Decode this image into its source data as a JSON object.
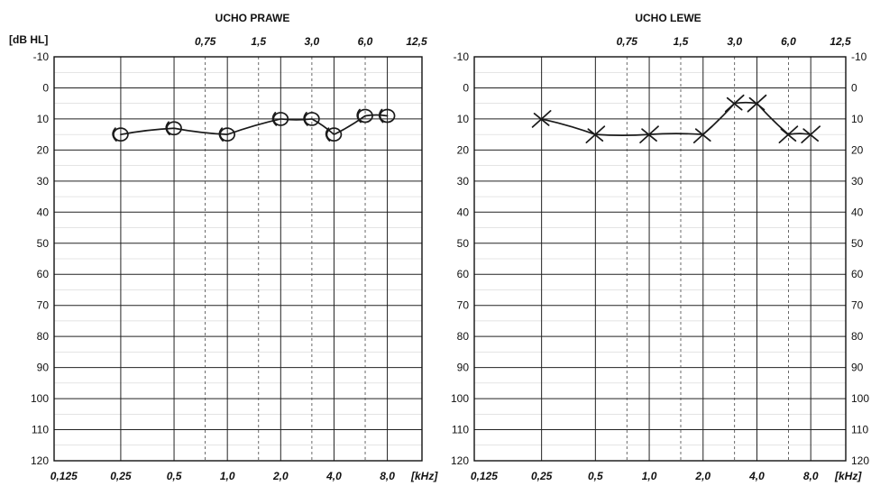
{
  "chart_data": [
    {
      "type": "line",
      "title": "UCHO PRAWE",
      "ylabel": "[dB HL]",
      "xlabel": "[kHz]",
      "ylim": [
        -10,
        120
      ],
      "y_inverted": true,
      "y_ticks": [
        "-10",
        "0",
        "10",
        "20",
        "30",
        "40",
        "50",
        "60",
        "70",
        "80",
        "90",
        "100",
        "110",
        "120"
      ],
      "x_ticks_bottom": [
        "0,125",
        "0,25",
        "0,5",
        "1,0",
        "2,0",
        "4,0",
        "8,0"
      ],
      "x_ticks_top": [
        "0,75",
        "1,5",
        "3,0",
        "6,0",
        "12,5"
      ],
      "grid": true,
      "marker": "circle",
      "series": [
        {
          "x": [
            0.25,
            0.5,
            1.0,
            2.0,
            3.0,
            4.0,
            6.0,
            8.0
          ],
          "y": [
            15,
            13,
            15,
            10,
            10,
            15,
            9,
            9
          ]
        }
      ]
    },
    {
      "type": "line",
      "title": "UCHO LEWE",
      "ylabel": "",
      "xlabel": "[kHz]",
      "ylim": [
        -10,
        120
      ],
      "y_inverted": true,
      "y_ticks": [
        "-10",
        "0",
        "10",
        "20",
        "30",
        "40",
        "50",
        "60",
        "70",
        "80",
        "90",
        "100",
        "110",
        "120"
      ],
      "x_ticks_bottom": [
        "0,125",
        "0,25",
        "0,5",
        "1,0",
        "2,0",
        "4,0",
        "8,0"
      ],
      "x_ticks_top": [
        "0,75",
        "1,5",
        "3,0",
        "6,0",
        "12,5"
      ],
      "grid": true,
      "marker": "x",
      "series": [
        {
          "x": [
            0.25,
            0.5,
            1.0,
            2.0,
            3.0,
            4.0,
            6.0,
            8.0
          ],
          "y": [
            10,
            15,
            15,
            15,
            5,
            5,
            15,
            15
          ]
        }
      ]
    }
  ]
}
